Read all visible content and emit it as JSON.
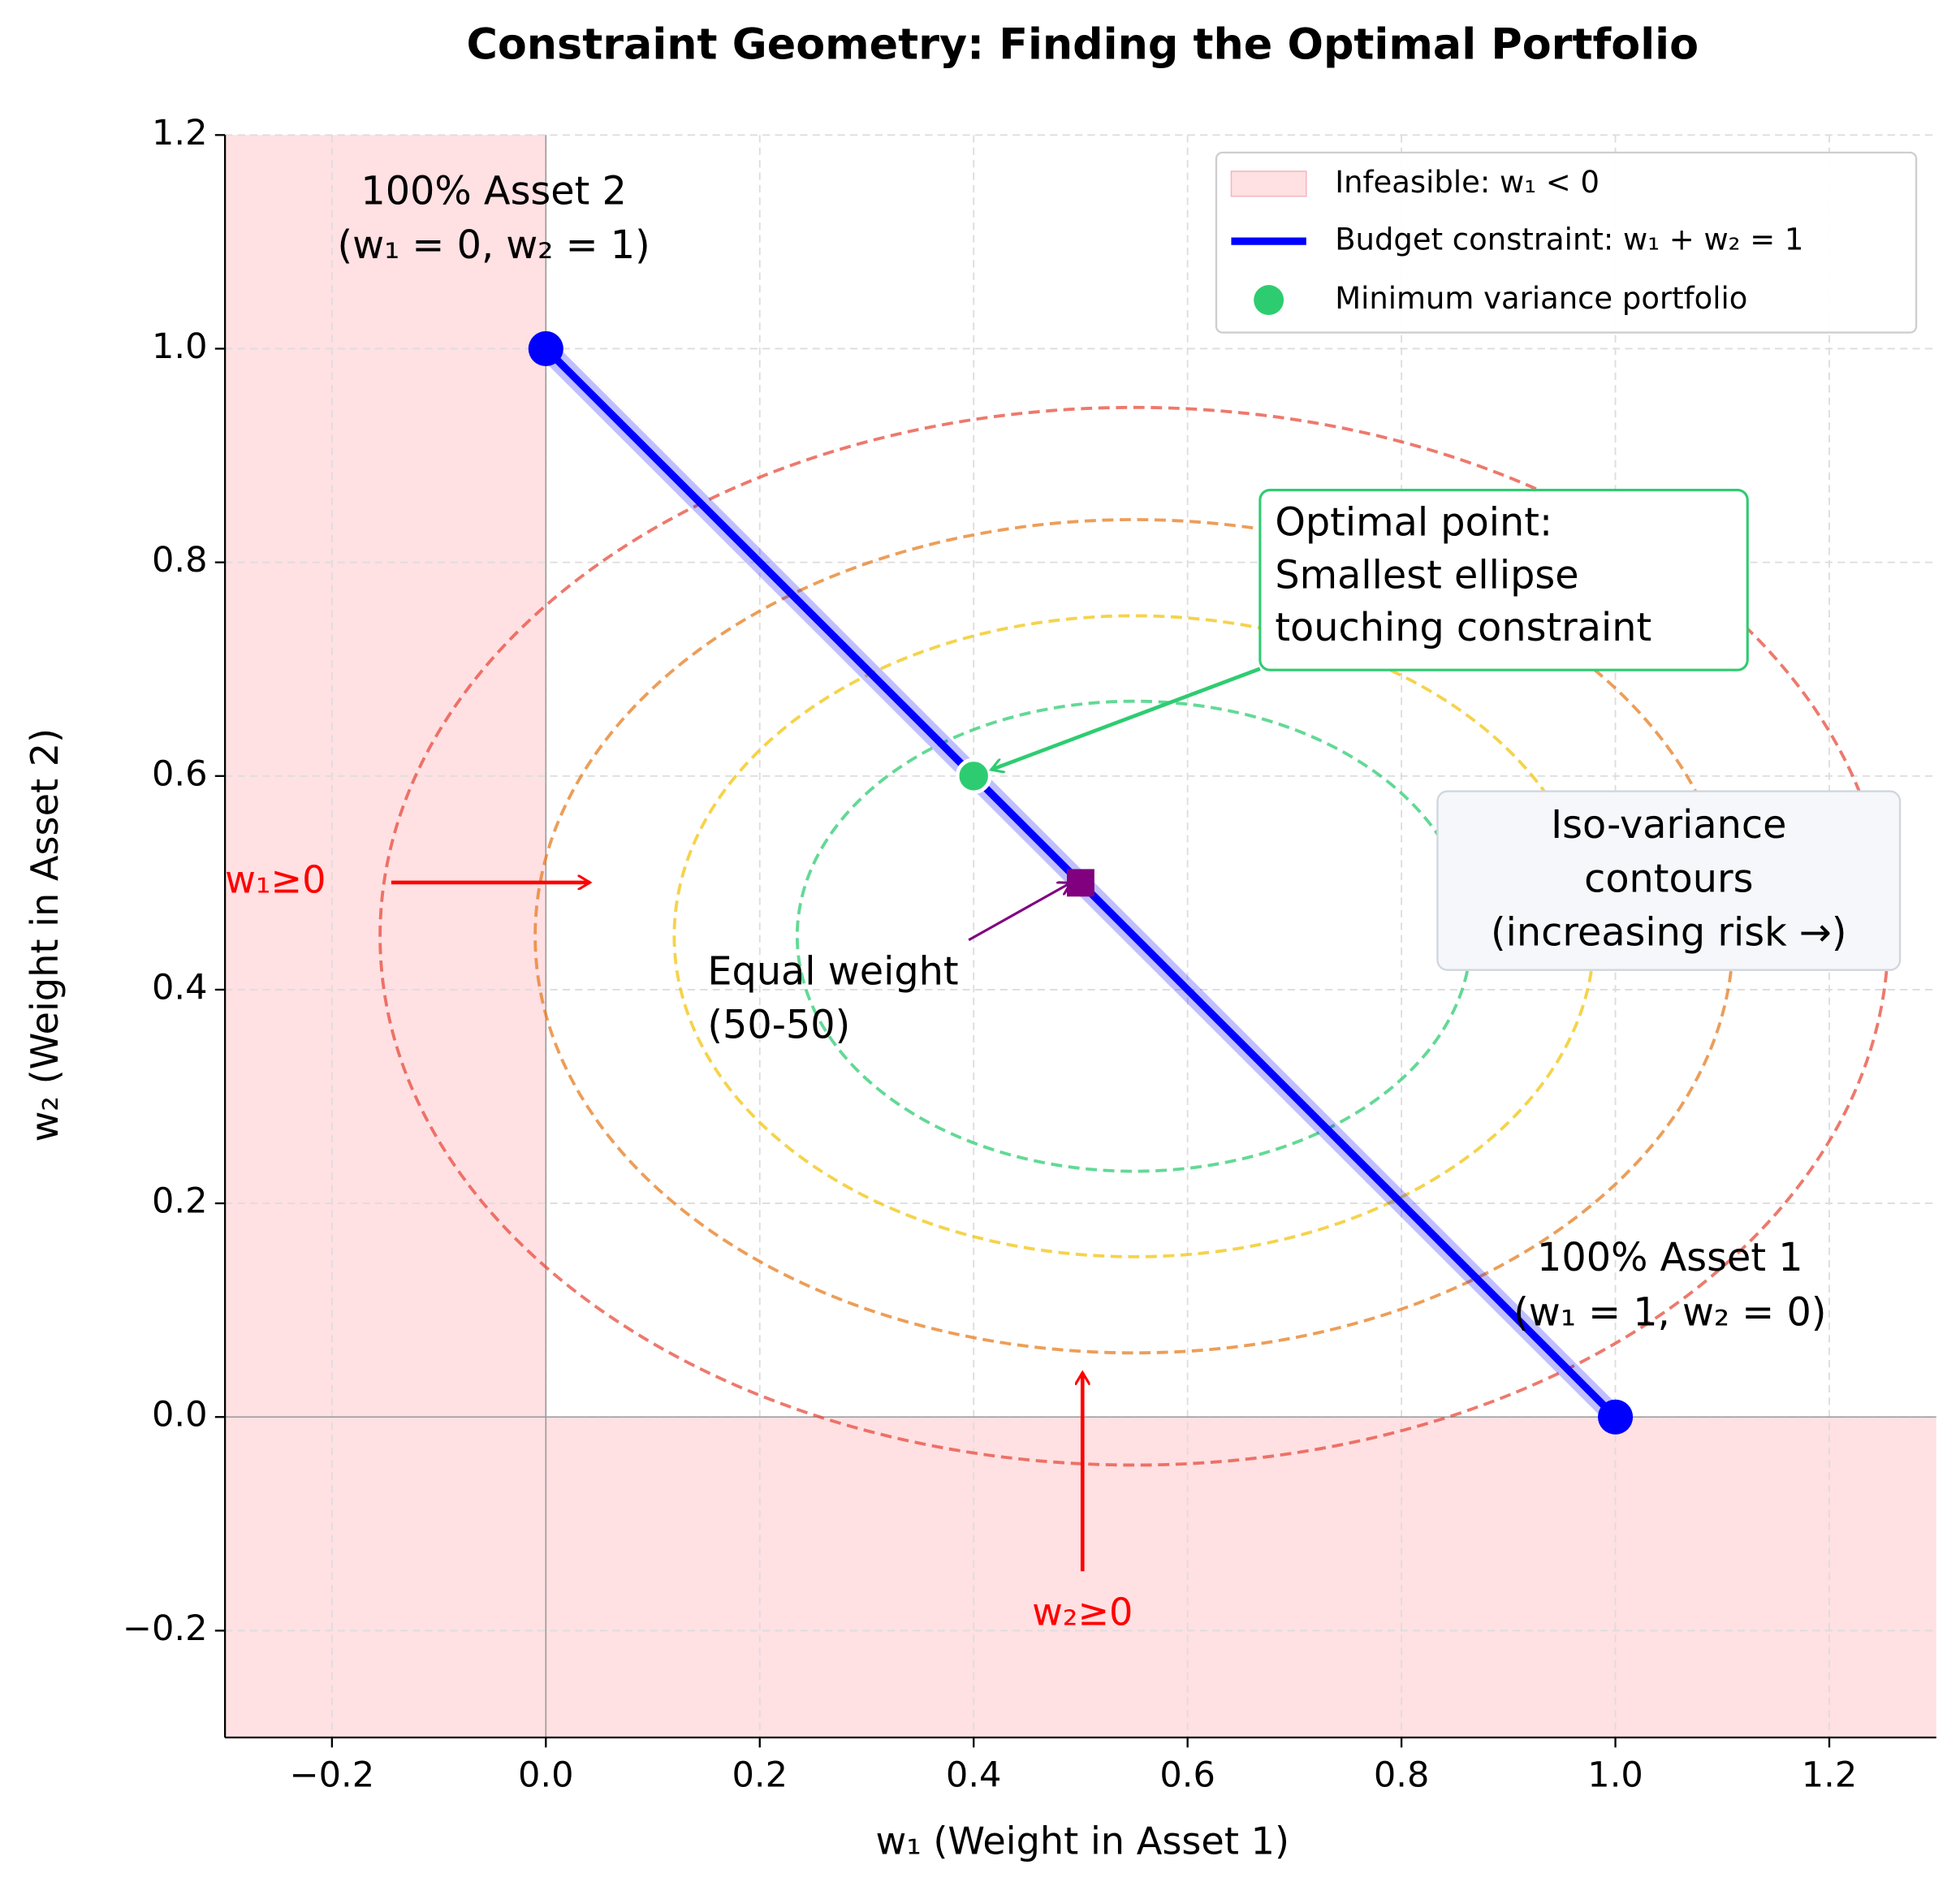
{
  "chart_data": {
    "type": "scatter",
    "title": "Constraint Geometry: Finding the Optimal Portfolio",
    "x_label": "w₁ (Weight in Asset 1)",
    "y_label": "w₂ (Weight in Asset 2)",
    "xlim": [
      -0.3,
      1.3
    ],
    "ylim": [
      -0.3,
      1.2
    ],
    "xticks": [
      {
        "value": -0.2,
        "label": "−0.2"
      },
      {
        "value": 0,
        "label": "0.0"
      },
      0.2,
      0.4,
      0.6,
      0.8,
      {
        "value": 1,
        "label": "1.0"
      },
      1.2
    ],
    "yticks": [
      {
        "value": -0.2,
        "label": "−0.2"
      },
      {
        "value": 0,
        "label": "0.0"
      },
      0.2,
      0.4,
      0.6,
      0.8,
      {
        "value": 1,
        "label": "1.0"
      },
      1.2
    ],
    "grid": true,
    "legend": "upper right",
    "infeasible": {
      "name": "Infeasible: w₁ < 0",
      "color": "#ffe0e3",
      "x_below": 0,
      "y_below": 0
    },
    "series": [
      {
        "name": "Budget constraint: w₁ + w₂ = 1",
        "color": "#0000ff",
        "x": [
          0,
          1
        ],
        "values": [
          1,
          0
        ]
      },
      {
        "name": "Minimum variance portfolio",
        "color": "#2ecc71",
        "x": [
          0.4
        ],
        "values": [
          0.6
        ]
      }
    ],
    "corner_points": {
      "color": "#0000ff",
      "x": [
        0,
        1
      ],
      "values": [
        1,
        0
      ]
    },
    "equal_weight": {
      "color": "#800080",
      "x": [
        0.5
      ],
      "values": [
        0.5
      ]
    },
    "contours": {
      "center": [
        0.55,
        0.45
      ],
      "ellipses": [
        {
          "rx": 0.315,
          "ry": 0.22,
          "color": "#2ecc71"
        },
        {
          "rx": 0.43,
          "ry": 0.3,
          "color": "#f1c40f"
        },
        {
          "rx": 0.56,
          "ry": 0.39,
          "color": "#e67e22"
        },
        {
          "rx": 0.705,
          "ry": 0.495,
          "color": "#e74c3c"
        }
      ]
    },
    "annotations": {
      "asset2": [
        "100% Asset 2",
        "(w₁ = 0, w₂ = 1)"
      ],
      "asset1": [
        "100% Asset 1",
        "(w₁ = 1, w₂ = 0)"
      ],
      "optimal": [
        "Optimal point:",
        "Smallest ellipse",
        "touching constraint"
      ],
      "iso": [
        "Iso-variance",
        "contours",
        "(increasing risk →)"
      ],
      "equal": [
        "Equal weight",
        "(50-50)"
      ],
      "w1_constraint": "w₁≥0",
      "w2_constraint": "w₂≥0"
    }
  }
}
